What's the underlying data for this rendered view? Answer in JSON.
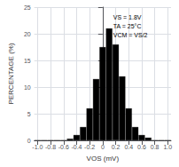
{
  "chart_data": {
    "type": "bar",
    "xlabel": "VOS (mV)",
    "ylabel": "PERCENTAGE (%)",
    "annotations": [
      "VS = 1.8V",
      "TA = 25°C",
      "VCM = VS/2"
    ],
    "x": [
      -1.0,
      -0.9,
      -0.8,
      -0.7,
      -0.6,
      -0.5,
      -0.4,
      -0.3,
      -0.2,
      -0.1,
      0.0,
      0.1,
      0.2,
      0.3,
      0.4,
      0.5,
      0.6,
      0.7,
      0.8,
      0.9,
      1.0
    ],
    "values": [
      0,
      0,
      0,
      0,
      0,
      0.3,
      1.0,
      2.5,
      6.0,
      11.5,
      17.5,
      21.0,
      18.0,
      12.0,
      6.0,
      2.5,
      1.0,
      0.5,
      0,
      0,
      0
    ],
    "color": "#000000",
    "xlim": [
      -1.05,
      1.05
    ],
    "ylim": [
      0,
      25
    ],
    "xticks": [
      {
        "value": -1.0,
        "label": "-1.0"
      },
      -0.8,
      -0.6,
      -0.4,
      -0.2,
      0,
      0.2,
      0.4,
      0.6,
      0.8,
      {
        "value": 1.0,
        "label": "1.0"
      }
    ],
    "yticks": [
      0,
      5,
      10,
      15,
      20,
      25
    ],
    "grid": true
  }
}
